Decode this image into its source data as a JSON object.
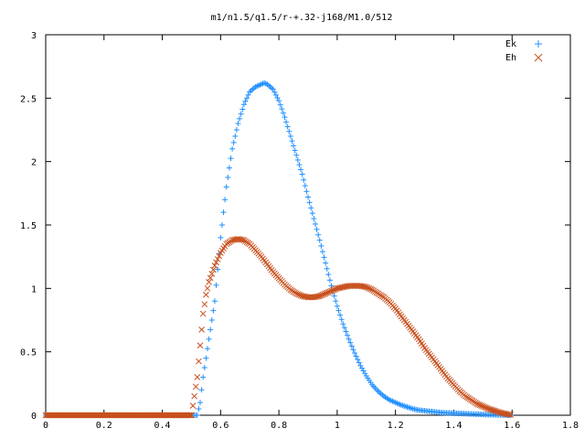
{
  "chart_data": {
    "type": "scatter",
    "title": "m1/n1.5/q1.5/r-+.32-j168/M1.0/512",
    "xlabel": "",
    "ylabel": "",
    "xlim": [
      0,
      1.8
    ],
    "ylim": [
      0,
      3
    ],
    "x_ticks": [
      "0",
      "0.2",
      "0.4",
      "0.6",
      "0.8",
      "1",
      "1.2",
      "1.4",
      "1.6",
      "1.8"
    ],
    "y_ticks": [
      "0",
      "0.5",
      "1",
      "1.5",
      "2",
      "2.5",
      "3"
    ],
    "legend_position": "top-right",
    "grid": false,
    "series": [
      {
        "name": "Ek",
        "marker": "plus",
        "color": "#1f8fff",
        "x": [
          0.0,
          0.1,
          0.2,
          0.3,
          0.4,
          0.5,
          0.52,
          0.53,
          0.54,
          0.55,
          0.56,
          0.58,
          0.6,
          0.62,
          0.64,
          0.66,
          0.68,
          0.7,
          0.72,
          0.74,
          0.75,
          0.76,
          0.78,
          0.8,
          0.82,
          0.84,
          0.86,
          0.88,
          0.9,
          0.92,
          0.94,
          0.96,
          0.98,
          1.0,
          1.02,
          1.04,
          1.06,
          1.08,
          1.1,
          1.12,
          1.14,
          1.16,
          1.18,
          1.2,
          1.22,
          1.24,
          1.26,
          1.28,
          1.3,
          1.32,
          1.34,
          1.36,
          1.38,
          1.4,
          1.42,
          1.44,
          1.46,
          1.48,
          1.5,
          1.52,
          1.54,
          1.56,
          1.58,
          1.6
        ],
        "y": [
          0,
          0,
          0,
          0,
          0,
          0,
          0,
          0.1,
          0.3,
          0.45,
          0.6,
          0.9,
          1.4,
          1.8,
          2.1,
          2.3,
          2.45,
          2.55,
          2.59,
          2.61,
          2.62,
          2.61,
          2.57,
          2.48,
          2.35,
          2.2,
          2.05,
          1.9,
          1.72,
          1.55,
          1.38,
          1.2,
          1.02,
          0.86,
          0.72,
          0.6,
          0.49,
          0.39,
          0.31,
          0.24,
          0.19,
          0.15,
          0.12,
          0.1,
          0.08,
          0.065,
          0.05,
          0.04,
          0.035,
          0.03,
          0.025,
          0.02,
          0.018,
          0.016,
          0.014,
          0.012,
          0.01,
          0.008,
          0.006,
          0.004,
          0.003,
          0.002,
          0.001,
          0
        ]
      },
      {
        "name": "Eh",
        "marker": "x",
        "color": "#c8501e",
        "x": [
          0.0,
          0.1,
          0.2,
          0.3,
          0.4,
          0.5,
          0.52,
          0.53,
          0.54,
          0.55,
          0.56,
          0.58,
          0.6,
          0.62,
          0.64,
          0.66,
          0.68,
          0.7,
          0.72,
          0.74,
          0.76,
          0.78,
          0.8,
          0.82,
          0.84,
          0.86,
          0.88,
          0.9,
          0.92,
          0.94,
          0.96,
          0.98,
          1.0,
          1.02,
          1.04,
          1.06,
          1.08,
          1.1,
          1.12,
          1.14,
          1.16,
          1.18,
          1.2,
          1.22,
          1.24,
          1.26,
          1.28,
          1.3,
          1.32,
          1.34,
          1.36,
          1.38,
          1.4,
          1.42,
          1.44,
          1.46,
          1.48,
          1.5,
          1.52,
          1.54,
          1.56,
          1.58,
          1.6
        ],
        "y": [
          0,
          0,
          0,
          0,
          0,
          0,
          0.3,
          0.55,
          0.8,
          0.95,
          1.05,
          1.18,
          1.28,
          1.35,
          1.38,
          1.39,
          1.38,
          1.35,
          1.3,
          1.25,
          1.19,
          1.13,
          1.08,
          1.03,
          0.99,
          0.96,
          0.94,
          0.93,
          0.93,
          0.94,
          0.96,
          0.98,
          1.0,
          1.01,
          1.02,
          1.02,
          1.02,
          1.01,
          0.99,
          0.96,
          0.93,
          0.89,
          0.84,
          0.78,
          0.72,
          0.66,
          0.6,
          0.53,
          0.47,
          0.41,
          0.35,
          0.29,
          0.24,
          0.19,
          0.15,
          0.12,
          0.09,
          0.07,
          0.05,
          0.035,
          0.02,
          0.01,
          0
        ]
      }
    ]
  }
}
